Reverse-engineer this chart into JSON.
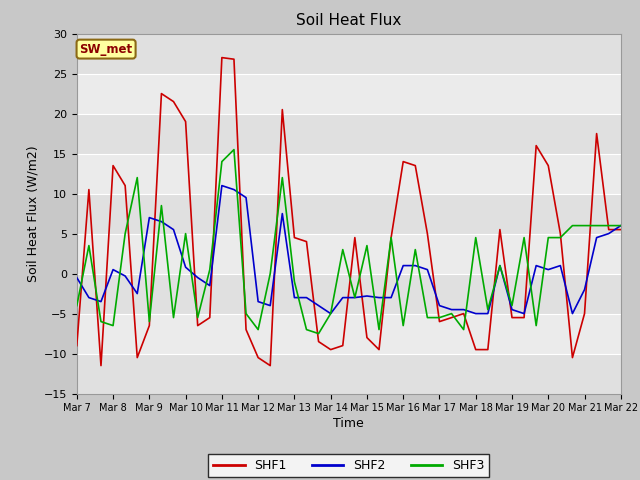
{
  "title": "Soil Heat Flux",
  "xlabel": "Time",
  "ylabel": "Soil Heat Flux (W/m2)",
  "ylim": [
    -15,
    30
  ],
  "yticks": [
    -15,
    -10,
    -5,
    0,
    5,
    10,
    15,
    20,
    25,
    30
  ],
  "annotation_text": "SW_met",
  "colors": {
    "SHF1": "#cc0000",
    "SHF2": "#0000cc",
    "SHF3": "#00aa00"
  },
  "xtick_labels": [
    "Mar 7",
    "Mar 8",
    "Mar 9",
    "Mar 10",
    "Mar 11",
    "Mar 12",
    "Mar 13",
    "Mar 14",
    "Mar 15",
    "Mar 16",
    "Mar 17",
    "Mar 18",
    "Mar 19",
    "Mar 20",
    "Mar 21",
    "Mar 22"
  ],
  "shf1": [
    -9,
    10.5,
    -11.5,
    13.5,
    11.0,
    -10.5,
    -6.5,
    22.5,
    21.5,
    19.0,
    -6.5,
    -5.5,
    27.0,
    26.8,
    -7.0,
    -10.5,
    -11.5,
    20.5,
    4.5,
    4.0,
    -8.5,
    -9.5,
    -9.0,
    4.5,
    -8.0,
    -9.5,
    4.5,
    14.0,
    13.5,
    5.0,
    -6.0,
    -5.5,
    -5.0,
    -9.5,
    -9.5,
    5.5,
    -5.5,
    -5.5,
    16.0,
    13.5,
    5.0,
    -10.5,
    -5.0,
    17.5,
    5.5,
    5.5
  ],
  "shf2": [
    -0.5,
    -3.0,
    -3.5,
    0.5,
    -0.3,
    -2.5,
    7.0,
    6.5,
    5.5,
    0.8,
    -0.5,
    -1.5,
    11.0,
    10.5,
    9.5,
    -3.5,
    -4.0,
    7.5,
    -3.0,
    -3.0,
    -4.0,
    -5.0,
    -3.0,
    -3.0,
    -2.8,
    -3.0,
    -3.0,
    1.0,
    1.0,
    0.5,
    -4.0,
    -4.5,
    -4.5,
    -5.0,
    -5.0,
    1.0,
    -4.5,
    -5.0,
    1.0,
    0.5,
    1.0,
    -5.0,
    -2.0,
    4.5,
    5.0,
    6.0
  ],
  "shf3": [
    -4.0,
    3.5,
    -6.0,
    -6.5,
    5.0,
    12.0,
    -6.0,
    8.5,
    -5.5,
    5.0,
    -5.5,
    0.5,
    14.0,
    15.5,
    -5.0,
    -7.0,
    0.0,
    12.0,
    -1.0,
    -7.0,
    -7.5,
    -5.0,
    3.0,
    -3.0,
    3.5,
    -7.0,
    4.5,
    -6.5,
    3.0,
    -5.5,
    -5.5,
    -5.0,
    -7.0,
    4.5,
    -4.5,
    1.0,
    -4.0,
    4.5,
    -6.5,
    4.5,
    4.5,
    6.0,
    6.0,
    6.0,
    6.0,
    6.0
  ],
  "band_colors": [
    "#e0e0e0",
    "#ebebeb",
    "#e0e0e0",
    "#ebebeb",
    "#e0e0e0",
    "#ebebeb",
    "#e0e0e0",
    "#ebebeb",
    "#e0e0e0"
  ]
}
